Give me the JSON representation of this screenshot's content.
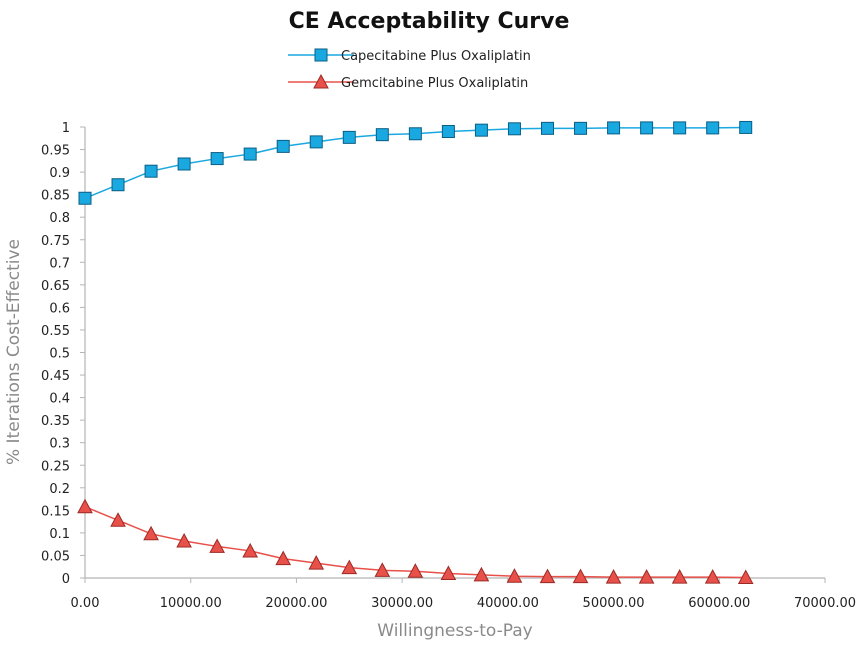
{
  "chart_data": {
    "type": "line",
    "title": "CE Acceptability Curve",
    "xlabel": "Willingness-to-Pay",
    "ylabel": "% Iterations Cost-Effective",
    "xlim": [
      0,
      70000
    ],
    "ylim": [
      0,
      1
    ],
    "grid": false,
    "legend_position": "top-center",
    "x_ticks": [
      "0.00",
      "10000.00",
      "20000.00",
      "30000.00",
      "40000.00",
      "50000.00",
      "60000.00",
      "70000.00"
    ],
    "x_tick_values": [
      0,
      10000,
      20000,
      30000,
      40000,
      50000,
      60000,
      70000
    ],
    "y_ticks": [
      "0",
      "0.05",
      "0.1",
      "0.15",
      "0.2",
      "0.25",
      "0.3",
      "0.35",
      "0.4",
      "0.45",
      "0.5",
      "0.55",
      "0.6",
      "0.65",
      "0.7",
      "0.75",
      "0.8",
      "0.85",
      "0.9",
      "0.95",
      "1"
    ],
    "y_tick_values": [
      0,
      0.05,
      0.1,
      0.15,
      0.2,
      0.25,
      0.3,
      0.35,
      0.4,
      0.45,
      0.5,
      0.55,
      0.6,
      0.65,
      0.7,
      0.75,
      0.8,
      0.85,
      0.9,
      0.95,
      1
    ],
    "x": [
      0,
      3125,
      6250,
      9375,
      12500,
      15625,
      18750,
      21875,
      25000,
      28125,
      31250,
      34375,
      37500,
      40625,
      43750,
      46875,
      50000,
      53125,
      56250,
      59375,
      62500
    ],
    "series": [
      {
        "name": "Capecitabine Plus Oxaliplatin",
        "color": "#1aa8e0",
        "marker": "square",
        "values": [
          0.842,
          0.872,
          0.902,
          0.918,
          0.93,
          0.94,
          0.957,
          0.967,
          0.977,
          0.983,
          0.985,
          0.99,
          0.993,
          0.996,
          0.997,
          0.997,
          0.998,
          0.998,
          0.998,
          0.998,
          0.999
        ]
      },
      {
        "name": "Gemcitabine Plus Oxaliplatin",
        "color": "#e8504a",
        "marker": "triangle",
        "values": [
          0.158,
          0.128,
          0.098,
          0.082,
          0.07,
          0.06,
          0.043,
          0.033,
          0.023,
          0.017,
          0.015,
          0.01,
          0.007,
          0.004,
          0.003,
          0.003,
          0.002,
          0.002,
          0.002,
          0.002,
          0.001
        ]
      }
    ]
  }
}
